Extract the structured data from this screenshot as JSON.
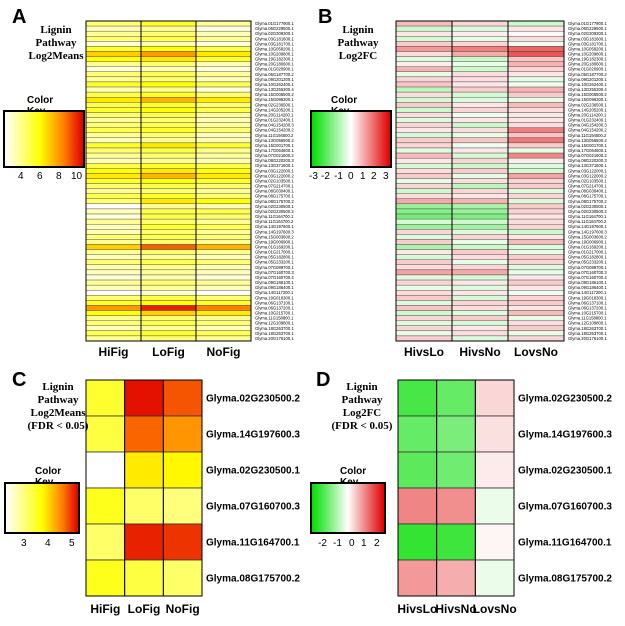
{
  "panels": {
    "A": {
      "label": "A",
      "title_lines": [
        "Lignin",
        "Pathway",
        "Log2Means"
      ],
      "key_title": "Color Key",
      "key_ticks": [
        "4",
        "6",
        "8",
        "10"
      ]
    },
    "B": {
      "label": "B",
      "title_lines": [
        "Lignin",
        "Pathway",
        "Log2FC"
      ],
      "key_title": "Color Key",
      "key_ticks": [
        "-3",
        "-2",
        "-1",
        "0",
        "1",
        "2",
        "3"
      ]
    },
    "C": {
      "label": "C",
      "title_lines": [
        "Lignin",
        "Pathway",
        "Log2Means",
        "(FDR < 0.05)"
      ],
      "key_title": "Color Key",
      "key_ticks": [
        "3",
        "4",
        "5"
      ]
    },
    "D": {
      "label": "D",
      "title_lines": [
        "Lignin",
        "Pathway",
        "Log2FC",
        "(FDR < 0.05)"
      ],
      "key_title": "Color Key",
      "key_ticks": [
        "-2",
        "-1",
        "0",
        "1",
        "2"
      ]
    }
  },
  "colors": {
    "heat_low": "#ffffff",
    "heat_mid": "#ffff00",
    "heat_high": "#e00000",
    "div_low": "#00dd00",
    "div_mid": "#ffffff",
    "div_high": "#e00000"
  },
  "chart_data": [
    {
      "type": "heatmap",
      "panel": "A",
      "title": "Lignin Pathway Log2Means",
      "columns": [
        "HiFig",
        "LoFig",
        "NoFig"
      ],
      "rows": [
        "Glyma.01G177900.1",
        "Glyma.06G229500.1",
        "Glyma.02G309300.1",
        "Glyma.03G181600.1",
        "Glyma.03G181700.1",
        "Glyma.10G058200.1",
        "Glyma.10G209800.1",
        "Glyma.19G182300.1",
        "Glyma.20G180600.1",
        "Glyma.01G020900.1",
        "Glyma.05G187700.2",
        "Glyma.09G201200.1",
        "Glyma.10G262400.1",
        "Glyma.13G255300.4",
        "Glyma.15G006500.2",
        "Glyma.15G096300.1",
        "Glyma.02G236500.1",
        "Glyma.14G205200.1",
        "Glyma.20G114200.1",
        "Glyma.01G232400.1",
        "Glyma.04G154200.3",
        "Glyma.04G154200.2",
        "Glyma.11G194500.2",
        "Glyma.13G056500.2",
        "Glyma.15G001700.1",
        "Glyma.17G064600.1",
        "Glyma.07G021600.2",
        "Glyma.08G220200.3",
        "Glyma.13G371600.1",
        "Glyma.03G122000.1",
        "Glyma.03G122000.2",
        "Glyma.02G103500.1",
        "Glyma.07G214700.1",
        "Glyma.08G030400.1",
        "Glyma.08G175700.1",
        "Glyma.08G175700.2",
        "Glyma.02G230500.1",
        "Glyma.02G230500.2",
        "Glyma.11G164700.1",
        "Glyma.11G164700.2",
        "Glyma.14G197600.1",
        "Glyma.14G197600.3",
        "Glyma.15G003600.2",
        "Glyma.19G006900.1",
        "Glyma.01G169200.1",
        "Glyma.01G217000.1",
        "Glyma.05G182800.1",
        "Glyma.05G233200.1",
        "Glyma.07G089700.1",
        "Glyma.07G160700.3",
        "Glyma.07G160700.4",
        "Glyma.09G186100.1",
        "Glyma.09G186400.1",
        "Glyma.14G117200.1",
        "Glyma.19G018300.1",
        "Glyma.06G137100.1",
        "Glyma.06G137200.1",
        "Glyma.10G215700.1",
        "Glyma.11G158800.1",
        "Glyma.12G109800.1",
        "Glyma.18G263700.1",
        "Glyma.18G263700.1",
        "Glyma.20G176100.1"
      ],
      "values": [
        [
          5,
          6,
          4.5
        ],
        [
          4,
          4.5,
          3.5
        ],
        [
          4.5,
          5,
          4
        ],
        [
          5,
          5.5,
          4.5
        ],
        [
          3.5,
          4,
          3.5
        ],
        [
          6,
          6.5,
          5.5
        ],
        [
          7.5,
          8.5,
          7
        ],
        [
          6.5,
          7,
          6
        ],
        [
          4.5,
          5,
          4
        ],
        [
          3.5,
          4,
          3.5
        ],
        [
          5,
          5.5,
          4.5
        ],
        [
          4.5,
          5,
          4
        ],
        [
          6,
          6.5,
          5.5
        ],
        [
          4,
          4.5,
          3.5
        ],
        [
          5.5,
          6,
          5
        ],
        [
          7,
          8,
          7
        ],
        [
          5.5,
          6,
          5
        ],
        [
          6,
          6.5,
          5.5
        ],
        [
          5,
          5.5,
          4.5
        ],
        [
          4.5,
          5,
          4
        ],
        [
          5,
          5.5,
          4.5
        ],
        [
          5.5,
          6,
          5
        ],
        [
          4.5,
          5,
          4
        ],
        [
          4,
          4.5,
          4
        ],
        [
          6,
          7,
          6
        ],
        [
          5,
          5.5,
          4.5
        ],
        [
          4.5,
          5,
          4.5
        ],
        [
          4,
          4.5,
          4
        ],
        [
          5.5,
          6,
          5.5
        ],
        [
          6.5,
          7,
          6.5
        ],
        [
          7,
          8,
          7
        ],
        [
          6,
          6.5,
          6
        ],
        [
          5,
          5.5,
          5
        ],
        [
          4.5,
          5,
          4.5
        ],
        [
          5.5,
          6,
          5
        ],
        [
          5,
          7,
          6.5
        ],
        [
          3,
          4.5,
          4
        ],
        [
          4,
          5.5,
          5.5
        ],
        [
          3.5,
          5.5,
          5
        ],
        [
          4.5,
          5,
          4.5
        ],
        [
          4,
          6,
          5.5
        ],
        [
          4,
          5,
          4.5
        ],
        [
          5,
          5.5,
          5
        ],
        [
          4.5,
          5,
          4.5
        ],
        [
          7.5,
          9.5,
          8
        ],
        [
          4.5,
          5,
          4.5
        ],
        [
          4,
          4.5,
          4
        ],
        [
          5,
          5.5,
          5
        ],
        [
          4,
          4.5,
          4
        ],
        [
          4,
          4.5,
          4
        ],
        [
          3.5,
          4,
          3.5
        ],
        [
          4.5,
          5,
          4.5
        ],
        [
          4,
          4.5,
          4
        ],
        [
          3,
          3.5,
          3
        ],
        [
          5,
          5.5,
          5
        ],
        [
          6,
          6.5,
          6
        ],
        [
          8.5,
          10.5,
          9
        ],
        [
          6.5,
          7.5,
          7
        ],
        [
          4.5,
          5,
          4.5
        ],
        [
          5,
          5.5,
          5
        ],
        [
          4,
          4.5,
          4
        ],
        [
          5.5,
          6,
          5.5
        ],
        [
          4.5,
          5,
          4.5
        ]
      ],
      "key_range": [
        3,
        11
      ]
    },
    {
      "type": "heatmap",
      "panel": "B",
      "title": "Lignin Pathway Log2FC",
      "columns": [
        "HivsLo",
        "HivsNo",
        "LovsNo"
      ],
      "rows": [
        "Glyma.01G177900.1",
        "Glyma.06G229500.1",
        "Glyma.02G309300.1",
        "Glyma.03G181600.1",
        "Glyma.03G181700.1",
        "Glyma.10G058200.1",
        "Glyma.10G209800.1",
        "Glyma.19G182300.1",
        "Glyma.20G180600.1",
        "Glyma.01G020900.1",
        "Glyma.05G187700.2",
        "Glyma.09G201200.1",
        "Glyma.10G262400.1",
        "Glyma.13G255300.4",
        "Glyma.15G006500.2",
        "Glyma.15G096300.1",
        "Glyma.02G236500.1",
        "Glyma.14G205200.1",
        "Glyma.20G114200.1",
        "Glyma.01G232400.1",
        "Glyma.04G154200.3",
        "Glyma.04G154200.2",
        "Glyma.11G194500.2",
        "Glyma.13G056500.2",
        "Glyma.15G001700.1",
        "Glyma.17G064600.1",
        "Glyma.07G021600.2",
        "Glyma.08G220200.3",
        "Glyma.13G371600.1",
        "Glyma.03G122000.1",
        "Glyma.03G122000.2",
        "Glyma.02G103500.1",
        "Glyma.07G214700.1",
        "Glyma.08G030400.1",
        "Glyma.08G175700.1",
        "Glyma.08G175700.2",
        "Glyma.02G230500.1",
        "Glyma.02G230500.2",
        "Glyma.11G164700.1",
        "Glyma.11G164700.2",
        "Glyma.14G197600.1",
        "Glyma.14G197600.3",
        "Glyma.15G003600.2",
        "Glyma.19G006900.1",
        "Glyma.01G169200.1",
        "Glyma.01G217000.1",
        "Glyma.05G182800.1",
        "Glyma.05G233200.1",
        "Glyma.07G089700.1",
        "Glyma.07G160700.3",
        "Glyma.07G160700.4",
        "Glyma.09G186100.1",
        "Glyma.09G186400.1",
        "Glyma.14G117200.1",
        "Glyma.19G018300.1",
        "Glyma.06G137100.1",
        "Glyma.06G137200.1",
        "Glyma.10G215700.1",
        "Glyma.11G158800.1",
        "Glyma.12G109800.1",
        "Glyma.18G263700.1",
        "Glyma.18G263700.1",
        "Glyma.20G176100.1"
      ],
      "values": [
        [
          0.8,
          0.5,
          -0.6
        ],
        [
          -0.6,
          -0.4,
          0.3
        ],
        [
          0.3,
          0.2,
          0.1
        ],
        [
          -0.5,
          -0.3,
          0.4
        ],
        [
          0.6,
          0.5,
          -0.2
        ],
        [
          1.2,
          1.5,
          1.8
        ],
        [
          0.4,
          1.0,
          2.0
        ],
        [
          -0.4,
          -0.6,
          0.7
        ],
        [
          0.2,
          -0.3,
          0.9
        ],
        [
          0.9,
          -0.6,
          0.5
        ],
        [
          -0.3,
          0.4,
          0.3
        ],
        [
          0.5,
          0.4,
          -0.3
        ],
        [
          0.7,
          0.3,
          -0.2
        ],
        [
          -0.8,
          0.6,
          0.9
        ],
        [
          0.4,
          -0.5,
          0.6
        ],
        [
          -0.5,
          -0.4,
          -0.3
        ],
        [
          0.6,
          0.3,
          0.8
        ],
        [
          -0.6,
          0.5,
          0.4
        ],
        [
          0.4,
          -0.2,
          0.3
        ],
        [
          -0.4,
          0.3,
          0.3
        ],
        [
          0.5,
          -0.6,
          0.4
        ],
        [
          0.3,
          0.4,
          1.5
        ],
        [
          -0.5,
          -0.3,
          0.7
        ],
        [
          0.6,
          0.7,
          1.6
        ],
        [
          0.5,
          -0.2,
          0.6
        ],
        [
          -0.4,
          0.3,
          -0.3
        ],
        [
          0.8,
          -0.5,
          1.4
        ],
        [
          0.3,
          0.5,
          0.2
        ],
        [
          -0.5,
          -0.6,
          -0.4
        ],
        [
          0.4,
          0.6,
          -0.5
        ],
        [
          0.6,
          -0.3,
          1.1
        ],
        [
          -0.3,
          0.4,
          0.5
        ],
        [
          0.5,
          -0.8,
          0.6
        ],
        [
          -0.6,
          0.5,
          -0.4
        ],
        [
          0.4,
          0.3,
          0.5
        ],
        [
          1.0,
          0.9,
          -0.4
        ],
        [
          -1.2,
          -1.0,
          0.6
        ],
        [
          -1.4,
          -1.2,
          0.5
        ],
        [
          -1.6,
          -1.5,
          0.3
        ],
        [
          -0.5,
          -0.6,
          0.4
        ],
        [
          -1.2,
          -1.1,
          0.5
        ],
        [
          0.5,
          -0.4,
          -0.6
        ],
        [
          -0.4,
          0.5,
          0.3
        ],
        [
          0.6,
          -0.3,
          0.8
        ],
        [
          -1.0,
          -0.6,
          -0.4
        ],
        [
          0.3,
          0.6,
          -0.3
        ],
        [
          -0.5,
          0.4,
          0.6
        ],
        [
          0.6,
          -0.3,
          0.5
        ],
        [
          0.4,
          0.5,
          -0.4
        ],
        [
          1.1,
          1.0,
          -0.3
        ],
        [
          -0.4,
          -0.5,
          0.3
        ],
        [
          0.5,
          0.3,
          0.6
        ],
        [
          -0.3,
          -0.4,
          0.3
        ],
        [
          0.4,
          0.3,
          -0.2
        ],
        [
          0.6,
          -0.5,
          0.5
        ],
        [
          -0.4,
          0.5,
          0.6
        ],
        [
          0.7,
          0.4,
          0.3
        ],
        [
          -0.6,
          -0.4,
          0.8
        ],
        [
          0.5,
          0.6,
          -0.3
        ],
        [
          -0.4,
          -0.5,
          0.4
        ],
        [
          0.5,
          0.3,
          0.6
        ],
        [
          -0.3,
          0.4,
          -0.3
        ],
        [
          0.6,
          -0.4,
          0.5
        ]
      ],
      "key_range": [
        -3,
        3
      ]
    },
    {
      "type": "heatmap",
      "panel": "C",
      "title": "Lignin Pathway Log2Means (FDR < 0.05)",
      "columns": [
        "HiFig",
        "LoFig",
        "NoFig"
      ],
      "rows": [
        "Glyma.02G230500.2",
        "Glyma.14G197600.3",
        "Glyma.02G230500.1",
        "Glyma.07G160700.3",
        "Glyma.11G164700.1",
        "Glyma.08G175700.2"
      ],
      "values": [
        [
          3.5,
          5.3,
          4.9
        ],
        [
          3.4,
          4.8,
          4.5
        ],
        [
          2.4,
          3.9,
          3.8
        ],
        [
          3.6,
          3.2,
          3.1
        ],
        [
          3.2,
          5.2,
          5.1
        ],
        [
          3.6,
          3.4,
          3.2
        ]
      ],
      "key_range": [
        2.4,
        5.4
      ]
    },
    {
      "type": "heatmap",
      "panel": "D",
      "title": "Lignin Pathway Log2FC (FDR < 0.05)",
      "columns": [
        "HivsLo",
        "HivsNo",
        "LovsNo"
      ],
      "rows": [
        "Glyma.02G230500.2",
        "Glyma.14G197600.3",
        "Glyma.02G230500.1",
        "Glyma.07G160700.3",
        "Glyma.11G164700.1",
        "Glyma.08G175700.2"
      ],
      "values": [
        [
          -1.8,
          -1.5,
          0.4
        ],
        [
          -1.5,
          -1.3,
          0.3
        ],
        [
          -1.6,
          -1.4,
          0.2
        ],
        [
          1.2,
          1.1,
          -0.2
        ],
        [
          -2.0,
          -1.9,
          0.1
        ],
        [
          1.0,
          0.8,
          -0.2
        ]
      ],
      "key_range": [
        -2.5,
        2.5
      ]
    }
  ]
}
